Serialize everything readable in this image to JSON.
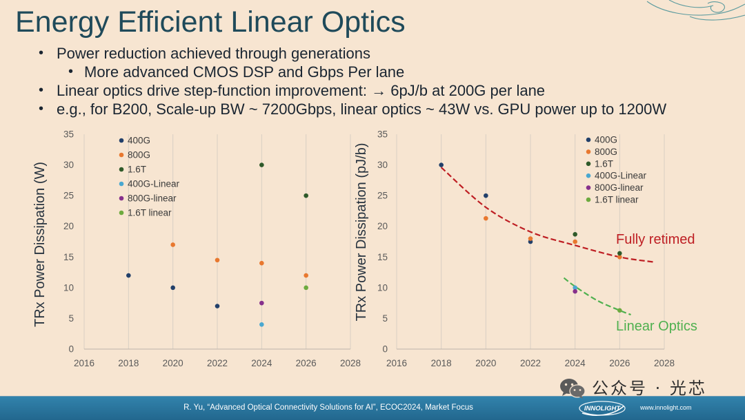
{
  "theme": {
    "background": "#F7E5D1",
    "title": "#1F4A5A",
    "text": "#1A2531",
    "footer_top": "#3283AC",
    "footer_bottom": "#22678E",
    "footer_text": "#FFFFFF",
    "axis_text": "#595959",
    "gridline": "#D8CEC3",
    "axis_line": "#BDB4AA",
    "swirl": "#3E8D95",
    "watermark": "#2E2E2E"
  },
  "slide": {
    "title": "Energy Efficient Linear Optics",
    "bullet_glyph": "•",
    "bullets": [
      {
        "level": 1,
        "text": "Power reduction achieved through generations"
      },
      {
        "level": 2,
        "text": "More advanced CMOS DSP and Gbps Per lane"
      },
      {
        "level": 1,
        "text": "Linear optics drive step-function improvement: → 6pJ/b at 200G per lane"
      },
      {
        "level": 1,
        "text": "e.g., for B200, Scale-up BW ~ 7200Gbps, linear optics ~ 43W vs. GPU power up to 1200W"
      }
    ]
  },
  "chart_data": [
    {
      "type": "scatter",
      "ylabel": "TRx Power Dissipation (W)",
      "xlim": [
        2016,
        2028
      ],
      "ylim": [
        0,
        35
      ],
      "xticks": [
        2016,
        2018,
        2020,
        2022,
        2024,
        2026,
        2028
      ],
      "yticks": [
        0,
        5,
        10,
        15,
        20,
        25,
        30,
        35
      ],
      "grid": "vertical",
      "legend": "top-left",
      "series": [
        {
          "name": "400G",
          "color": "#22406A",
          "points": [
            [
              2018,
              12
            ],
            [
              2020,
              10
            ],
            [
              2022,
              7
            ]
          ]
        },
        {
          "name": "800G",
          "color": "#E8782F",
          "points": [
            [
              2020,
              17
            ],
            [
              2022,
              14.5
            ],
            [
              2024,
              14
            ],
            [
              2026,
              12
            ]
          ]
        },
        {
          "name": "1.6T",
          "color": "#2F5A2A",
          "points": [
            [
              2024,
              30
            ],
            [
              2026,
              25
            ]
          ]
        },
        {
          "name": "400G-Linear",
          "color": "#4AA8D0",
          "points": [
            [
              2024,
              4
            ]
          ]
        },
        {
          "name": "800G-linear",
          "color": "#86308C",
          "points": [
            [
              2024,
              7.5
            ]
          ]
        },
        {
          "name": "1.6T linear",
          "color": "#6DAA3F",
          "points": [
            [
              2026,
              10
            ]
          ]
        }
      ]
    },
    {
      "type": "scatter",
      "ylabel": "TRx Power Dissipation (pJ/b)",
      "xlim": [
        2016,
        2028
      ],
      "ylim": [
        0,
        35
      ],
      "xticks": [
        2016,
        2018,
        2020,
        2022,
        2024,
        2026,
        2028
      ],
      "yticks": [
        0,
        5,
        10,
        15,
        20,
        25,
        30,
        35
      ],
      "grid": "vertical",
      "legend": "top-right",
      "series": [
        {
          "name": "400G",
          "color": "#22406A",
          "points": [
            [
              2018,
              30
            ],
            [
              2020,
              25
            ],
            [
              2022,
              17.5
            ]
          ]
        },
        {
          "name": "800G",
          "color": "#E8782F",
          "points": [
            [
              2020,
              21.3
            ],
            [
              2022,
              18
            ],
            [
              2024,
              17.5
            ],
            [
              2026,
              15
            ]
          ]
        },
        {
          "name": "1.6T",
          "color": "#2F5A2A",
          "points": [
            [
              2024,
              18.7
            ],
            [
              2026,
              15.6
            ]
          ]
        },
        {
          "name": "400G-Linear",
          "color": "#4AA8D0",
          "points": [
            [
              2024,
              10
            ]
          ]
        },
        {
          "name": "800G-linear",
          "color": "#86308C",
          "points": [
            [
              2024,
              9.4
            ]
          ]
        },
        {
          "name": "1.6T linear",
          "color": "#6DAA3F",
          "points": [
            [
              2026,
              6.3
            ]
          ]
        }
      ],
      "trendlines": [
        {
          "label": "Fully retimed",
          "color": "#BE1E23",
          "style": "dashed",
          "points": [
            [
              2018,
              29.6
            ],
            [
              2020,
              23.1
            ],
            [
              2022,
              19.1
            ],
            [
              2024,
              16.9
            ],
            [
              2026,
              15.0
            ],
            [
              2027.5,
              14.2
            ]
          ]
        },
        {
          "label": "Linear Optics",
          "color": "#4FB04F",
          "style": "dashed",
          "points": [
            [
              2023.5,
              11.6
            ],
            [
              2024,
              10.2
            ],
            [
              2025,
              7.9
            ],
            [
              2026,
              6.3
            ],
            [
              2026.5,
              5.6
            ]
          ]
        }
      ]
    }
  ],
  "footer": {
    "citation": "R. Yu, “Advanced Optical Connectivity Solutions for AI”, ECOC2024, Market Focus",
    "logo_text": "INNOLIGHT",
    "website": "www.innolight.com"
  },
  "watermark": {
    "icon": "wechat-icon",
    "text": "公众号 · 光芯"
  }
}
